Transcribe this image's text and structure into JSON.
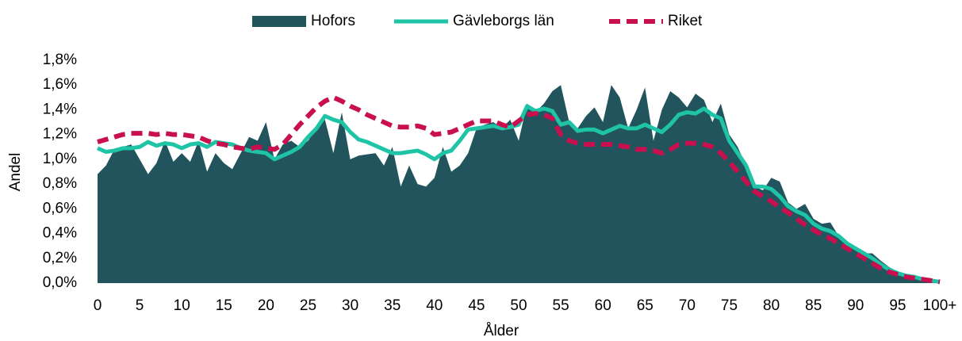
{
  "chart_data": {
    "type": "area_line",
    "x_label": "Ålder",
    "y_label": "Andel",
    "categories": [
      "0",
      null,
      null,
      null,
      null,
      "5",
      null,
      null,
      null,
      null,
      "10",
      null,
      null,
      null,
      null,
      "15",
      null,
      null,
      null,
      null,
      "20",
      null,
      null,
      null,
      null,
      "25",
      null,
      null,
      null,
      null,
      "30",
      null,
      null,
      null,
      null,
      "35",
      null,
      null,
      null,
      null,
      "40",
      null,
      null,
      null,
      null,
      "45",
      null,
      null,
      null,
      null,
      "50",
      null,
      null,
      null,
      null,
      "55",
      null,
      null,
      null,
      null,
      "60",
      null,
      null,
      null,
      null,
      "65",
      null,
      null,
      null,
      null,
      "70",
      null,
      null,
      null,
      null,
      "75",
      null,
      null,
      null,
      null,
      "80",
      null,
      null,
      null,
      null,
      "85",
      null,
      null,
      null,
      null,
      "90",
      null,
      null,
      null,
      null,
      "95",
      null,
      null,
      null,
      null,
      "100+"
    ],
    "ylim": [
      0,
      1.8
    ],
    "yticks": [
      {
        "value": 0,
        "label": "0,0%"
      },
      {
        "value": 0.2,
        "label": "0,2%"
      },
      {
        "value": 0.4,
        "label": "0,4%"
      },
      {
        "value": 0.6,
        "label": "0,6%"
      },
      {
        "value": 0.8,
        "label": "0,8%"
      },
      {
        "value": 1.0,
        "label": "1,0%"
      },
      {
        "value": 1.2,
        "label": "1,2%"
      },
      {
        "value": 1.4,
        "label": "1,4%"
      },
      {
        "value": 1.6,
        "label": "1,6%"
      },
      {
        "value": 1.8,
        "label": "1,8%"
      }
    ],
    "legend": "top",
    "series": [
      {
        "name": "Hofors",
        "kind": "area",
        "color": "#22545e",
        "values": [
          0.88,
          0.95,
          1.08,
          1.1,
          1.12,
          1.0,
          0.88,
          0.97,
          1.15,
          0.98,
          1.05,
          0.98,
          1.15,
          0.9,
          1.05,
          0.97,
          0.92,
          1.05,
          1.18,
          1.15,
          1.3,
          1.0,
          1.12,
          1.15,
          1.1,
          1.15,
          1.25,
          1.32,
          1.05,
          1.38,
          1.0,
          1.03,
          1.04,
          1.05,
          0.95,
          1.1,
          0.78,
          0.95,
          0.8,
          0.78,
          0.85,
          1.1,
          0.9,
          0.95,
          1.05,
          1.25,
          1.28,
          1.3,
          1.25,
          1.32,
          1.15,
          1.45,
          1.38,
          1.45,
          1.55,
          1.6,
          1.3,
          1.25,
          1.35,
          1.42,
          1.3,
          1.6,
          1.5,
          1.25,
          1.4,
          1.58,
          1.15,
          1.4,
          1.55,
          1.5,
          1.42,
          1.53,
          1.48,
          1.3,
          1.45,
          1.2,
          1.1,
          0.95,
          0.78,
          0.75,
          0.85,
          0.82,
          0.65,
          0.6,
          0.64,
          0.52,
          0.48,
          0.49,
          0.38,
          0.33,
          0.28,
          0.24,
          0.24,
          0.18,
          0.13,
          0.09,
          0.07,
          0.05,
          0.03,
          0.02,
          0.02
        ]
      },
      {
        "name": "Gävleborgs län",
        "kind": "line",
        "color": "#1fc4a7",
        "values": [
          1.09,
          1.06,
          1.07,
          1.09,
          1.09,
          1.1,
          1.14,
          1.11,
          1.13,
          1.12,
          1.09,
          1.12,
          1.13,
          1.1,
          1.14,
          1.13,
          1.12,
          1.09,
          1.07,
          1.06,
          1.05,
          1.0,
          1.03,
          1.06,
          1.1,
          1.18,
          1.25,
          1.35,
          1.32,
          1.3,
          1.22,
          1.16,
          1.14,
          1.11,
          1.08,
          1.05,
          1.05,
          1.06,
          1.07,
          1.04,
          1.0,
          1.05,
          1.07,
          1.15,
          1.24,
          1.25,
          1.26,
          1.27,
          1.25,
          1.26,
          1.28,
          1.43,
          1.39,
          1.41,
          1.39,
          1.28,
          1.3,
          1.23,
          1.24,
          1.24,
          1.21,
          1.24,
          1.27,
          1.25,
          1.25,
          1.28,
          1.25,
          1.22,
          1.28,
          1.36,
          1.38,
          1.37,
          1.41,
          1.36,
          1.33,
          1.15,
          1.05,
          0.95,
          0.78,
          0.78,
          0.76,
          0.7,
          0.62,
          0.58,
          0.55,
          0.48,
          0.44,
          0.42,
          0.38,
          0.32,
          0.28,
          0.24,
          0.2,
          0.15,
          0.11,
          0.08,
          0.06,
          0.05,
          0.03,
          0.02,
          0.01
        ]
      },
      {
        "name": "Riket",
        "kind": "dashed",
        "color": "#c8104f",
        "values": [
          1.14,
          1.16,
          1.18,
          1.2,
          1.21,
          1.21,
          1.21,
          1.2,
          1.21,
          1.2,
          1.2,
          1.19,
          1.18,
          1.15,
          1.13,
          1.12,
          1.1,
          1.09,
          1.08,
          1.1,
          1.09,
          1.08,
          1.12,
          1.2,
          1.28,
          1.35,
          1.42,
          1.47,
          1.5,
          1.47,
          1.43,
          1.4,
          1.36,
          1.33,
          1.3,
          1.27,
          1.26,
          1.26,
          1.27,
          1.25,
          1.2,
          1.21,
          1.22,
          1.25,
          1.28,
          1.31,
          1.31,
          1.31,
          1.28,
          1.26,
          1.31,
          1.36,
          1.37,
          1.36,
          1.33,
          1.2,
          1.15,
          1.13,
          1.12,
          1.12,
          1.12,
          1.12,
          1.11,
          1.1,
          1.08,
          1.08,
          1.07,
          1.05,
          1.08,
          1.12,
          1.13,
          1.13,
          1.12,
          1.1,
          1.05,
          0.98,
          0.9,
          0.82,
          0.74,
          0.7,
          0.66,
          0.61,
          0.57,
          0.52,
          0.47,
          0.43,
          0.39,
          0.36,
          0.32,
          0.28,
          0.24,
          0.2,
          0.16,
          0.12,
          0.09,
          0.07,
          0.05,
          0.04,
          0.03,
          0.02,
          0.01
        ]
      }
    ]
  }
}
